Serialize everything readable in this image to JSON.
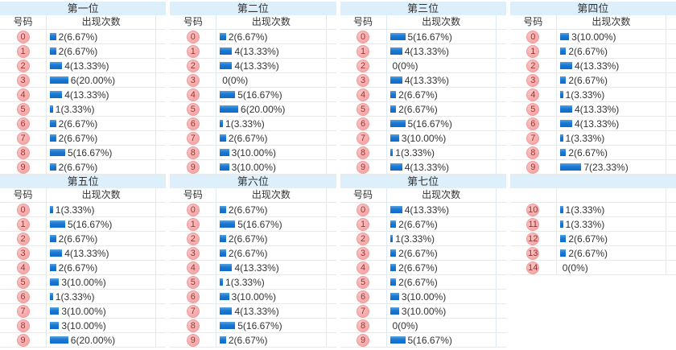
{
  "colors": {
    "header_band_bg": "#ddeffb",
    "bar_top": "#55a2e0",
    "bar_bottom": "#0f6cc9",
    "badge_bg": "#f6a7a7",
    "badge_border": "#ef9c9c",
    "badge_text": "#993333",
    "text": "#333333",
    "row_border": "#e9e9e9",
    "column_border": "#dde9f5"
  },
  "chart_data": {
    "type": "bar",
    "layout_hint": "8 mini frequency tables in a 4x2 grid, horizontal bars proportional to count",
    "tables": [
      {
        "title": "第一位",
        "number_header": "号码",
        "count_header": "出现次数",
        "rows": [
          {
            "num": "0",
            "count": 2,
            "label": "2(6.67%)"
          },
          {
            "num": "1",
            "count": 2,
            "label": "2(6.67%)"
          },
          {
            "num": "2",
            "count": 4,
            "label": "4(13.33%)"
          },
          {
            "num": "3",
            "count": 6,
            "label": "6(20.00%)"
          },
          {
            "num": "4",
            "count": 4,
            "label": "4(13.33%)"
          },
          {
            "num": "5",
            "count": 1,
            "label": "1(3.33%)"
          },
          {
            "num": "6",
            "count": 2,
            "label": "2(6.67%)"
          },
          {
            "num": "7",
            "count": 2,
            "label": "2(6.67%)"
          },
          {
            "num": "8",
            "count": 5,
            "label": "5(16.67%)"
          },
          {
            "num": "9",
            "count": 2,
            "label": "2(6.67%)"
          }
        ]
      },
      {
        "title": "第二位",
        "number_header": "号码",
        "count_header": "出现次数",
        "rows": [
          {
            "num": "0",
            "count": 2,
            "label": "2(6.67%)"
          },
          {
            "num": "1",
            "count": 4,
            "label": "4(13.33%)"
          },
          {
            "num": "2",
            "count": 4,
            "label": "4(13.33%)"
          },
          {
            "num": "3",
            "count": 0,
            "label": "0(0%)"
          },
          {
            "num": "4",
            "count": 5,
            "label": "5(16.67%)"
          },
          {
            "num": "5",
            "count": 6,
            "label": "6(20.00%)"
          },
          {
            "num": "6",
            "count": 1,
            "label": "1(3.33%)"
          },
          {
            "num": "7",
            "count": 2,
            "label": "2(6.67%)"
          },
          {
            "num": "8",
            "count": 3,
            "label": "3(10.00%)"
          },
          {
            "num": "9",
            "count": 3,
            "label": "3(10.00%)"
          }
        ]
      },
      {
        "title": "第三位",
        "number_header": "号码",
        "count_header": "出现次数",
        "rows": [
          {
            "num": "0",
            "count": 5,
            "label": "5(16.67%)"
          },
          {
            "num": "1",
            "count": 4,
            "label": "4(13.33%)"
          },
          {
            "num": "2",
            "count": 0,
            "label": "0(0%)"
          },
          {
            "num": "3",
            "count": 4,
            "label": "4(13.33%)"
          },
          {
            "num": "4",
            "count": 2,
            "label": "2(6.67%)"
          },
          {
            "num": "5",
            "count": 2,
            "label": "2(6.67%)"
          },
          {
            "num": "6",
            "count": 5,
            "label": "5(16.67%)"
          },
          {
            "num": "7",
            "count": 3,
            "label": "3(10.00%)"
          },
          {
            "num": "8",
            "count": 1,
            "label": "1(3.33%)"
          },
          {
            "num": "9",
            "count": 4,
            "label": "4(13.33%)"
          }
        ]
      },
      {
        "title": "第四位",
        "number_header": "号码",
        "count_header": "出现次数",
        "rows": [
          {
            "num": "0",
            "count": 3,
            "label": "3(10.00%)"
          },
          {
            "num": "1",
            "count": 2,
            "label": "2(6.67%)"
          },
          {
            "num": "2",
            "count": 4,
            "label": "4(13.33%)"
          },
          {
            "num": "3",
            "count": 2,
            "label": "2(6.67%)"
          },
          {
            "num": "4",
            "count": 1,
            "label": "1(3.33%)"
          },
          {
            "num": "5",
            "count": 4,
            "label": "4(13.33%)"
          },
          {
            "num": "6",
            "count": 4,
            "label": "4(13.33%)"
          },
          {
            "num": "7",
            "count": 1,
            "label": "1(3.33%)"
          },
          {
            "num": "8",
            "count": 2,
            "label": "2(6.67%)"
          },
          {
            "num": "9",
            "count": 7,
            "label": "7(23.33%)"
          }
        ]
      },
      {
        "title": "第五位",
        "number_header": "号码",
        "count_header": "出现次数",
        "rows": [
          {
            "num": "0",
            "count": 1,
            "label": "1(3.33%)"
          },
          {
            "num": "1",
            "count": 5,
            "label": "5(16.67%)"
          },
          {
            "num": "2",
            "count": 2,
            "label": "2(6.67%)"
          },
          {
            "num": "3",
            "count": 4,
            "label": "4(13.33%)"
          },
          {
            "num": "4",
            "count": 2,
            "label": "2(6.67%)"
          },
          {
            "num": "5",
            "count": 3,
            "label": "3(10.00%)"
          },
          {
            "num": "6",
            "count": 1,
            "label": "1(3.33%)"
          },
          {
            "num": "7",
            "count": 3,
            "label": "3(10.00%)"
          },
          {
            "num": "8",
            "count": 3,
            "label": "3(10.00%)"
          },
          {
            "num": "9",
            "count": 6,
            "label": "6(20.00%)"
          }
        ]
      },
      {
        "title": "第六位",
        "number_header": "号码",
        "count_header": "出现次数",
        "rows": [
          {
            "num": "0",
            "count": 2,
            "label": "2(6.67%)"
          },
          {
            "num": "1",
            "count": 5,
            "label": "5(16.67%)"
          },
          {
            "num": "2",
            "count": 2,
            "label": "2(6.67%)"
          },
          {
            "num": "3",
            "count": 2,
            "label": "2(6.67%)"
          },
          {
            "num": "4",
            "count": 4,
            "label": "4(13.33%)"
          },
          {
            "num": "5",
            "count": 1,
            "label": "1(3.33%)"
          },
          {
            "num": "6",
            "count": 3,
            "label": "3(10.00%)"
          },
          {
            "num": "7",
            "count": 4,
            "label": "4(13.33%)"
          },
          {
            "num": "8",
            "count": 5,
            "label": "5(16.67%)"
          },
          {
            "num": "9",
            "count": 2,
            "label": "2(6.67%)"
          }
        ]
      },
      {
        "title": "第七位",
        "number_header": "号码",
        "count_header": "出现次数",
        "rows": [
          {
            "num": "0",
            "count": 4,
            "label": "4(13.33%)"
          },
          {
            "num": "1",
            "count": 2,
            "label": "2(6.67%)"
          },
          {
            "num": "2",
            "count": 1,
            "label": "1(3.33%)"
          },
          {
            "num": "3",
            "count": 2,
            "label": "2(6.67%)"
          },
          {
            "num": "4",
            "count": 2,
            "label": "2(6.67%)"
          },
          {
            "num": "5",
            "count": 2,
            "label": "2(6.67%)"
          },
          {
            "num": "6",
            "count": 3,
            "label": "3(10.00%)"
          },
          {
            "num": "7",
            "count": 3,
            "label": "3(10.00%)"
          },
          {
            "num": "8",
            "count": 0,
            "label": "0(0%)"
          },
          {
            "num": "9",
            "count": 5,
            "label": "5(16.67%)"
          }
        ]
      },
      {
        "title": "",
        "number_header": "",
        "count_header": "",
        "rows": [
          {
            "num": "10",
            "count": 1,
            "label": "1(3.33%)"
          },
          {
            "num": "11",
            "count": 1,
            "label": "1(3.33%)"
          },
          {
            "num": "12",
            "count": 2,
            "label": "2(6.67%)"
          },
          {
            "num": "13",
            "count": 2,
            "label": "2(6.67%)"
          },
          {
            "num": "14",
            "count": 0,
            "label": "0(0%)"
          }
        ]
      }
    ]
  }
}
